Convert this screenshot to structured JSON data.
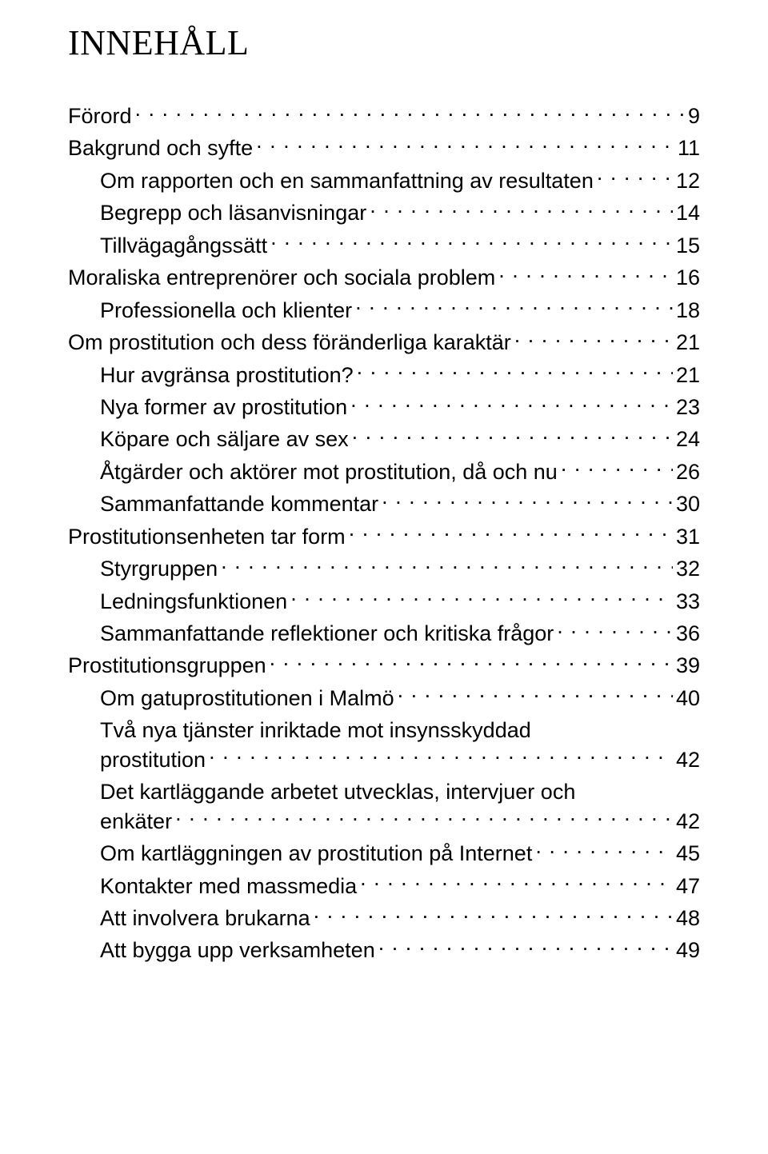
{
  "title": "INNEHÅLL",
  "toc": [
    {
      "label": "Förord",
      "page": "9",
      "level": 0
    },
    {
      "label": "Bakgrund och syfte",
      "page": "11",
      "level": 0
    },
    {
      "label": "Om rapporten och en sammanfattning av resultaten",
      "page": "12",
      "level": 1
    },
    {
      "label": "Begrepp och läsanvisningar",
      "page": "14",
      "level": 1
    },
    {
      "label": "Tillvägagångssätt",
      "page": "15",
      "level": 1
    },
    {
      "label": "Moraliska entreprenörer och sociala problem",
      "page": "16",
      "level": 0
    },
    {
      "label": "Professionella och klienter",
      "page": "18",
      "level": 1
    },
    {
      "label": "Om prostitution och dess föränderliga karaktär",
      "page": "21",
      "level": 0
    },
    {
      "label": "Hur avgränsa prostitution?",
      "page": "21",
      "level": 1
    },
    {
      "label": "Nya former av prostitution",
      "page": "23",
      "level": 1
    },
    {
      "label": "Köpare och säljare av sex",
      "page": "24",
      "level": 1
    },
    {
      "label": "Åtgärder och aktörer mot prostitution, då och nu",
      "page": "26",
      "level": 1
    },
    {
      "label": "Sammanfattande kommentar",
      "page": "30",
      "level": 1
    },
    {
      "label": "Prostitutionsenheten tar form",
      "page": "31",
      "level": 0
    },
    {
      "label": "Styrgruppen",
      "page": "32",
      "level": 1
    },
    {
      "label": "Ledningsfunktionen",
      "page": "33",
      "level": 1
    },
    {
      "label": "Sammanfattande reflektioner och kritiska frågor",
      "page": "36",
      "level": 1
    },
    {
      "label": "Prostitutionsgruppen",
      "page": "39",
      "level": 0
    },
    {
      "label": "Om gatuprostitutionen i Malmö",
      "page": "40",
      "level": 1
    },
    {
      "label_first": "Två nya tjänster inriktade mot insynsskyddad",
      "label_last": "prostitution",
      "page": "42",
      "level": 1,
      "multiline": true
    },
    {
      "label_first": "Det kartläggande arbetet utvecklas, intervjuer och",
      "label_last": "enkäter",
      "page": "42",
      "level": 1,
      "multiline": true
    },
    {
      "label": "Om kartläggningen av prostitution på Internet",
      "page": "45",
      "level": 1
    },
    {
      "label": "Kontakter med massmedia",
      "page": "47",
      "level": 1
    },
    {
      "label": "Att involvera brukarna",
      "page": "48",
      "level": 1
    },
    {
      "label": "Att bygga upp verksamheten",
      "page": "49",
      "level": 1
    }
  ]
}
